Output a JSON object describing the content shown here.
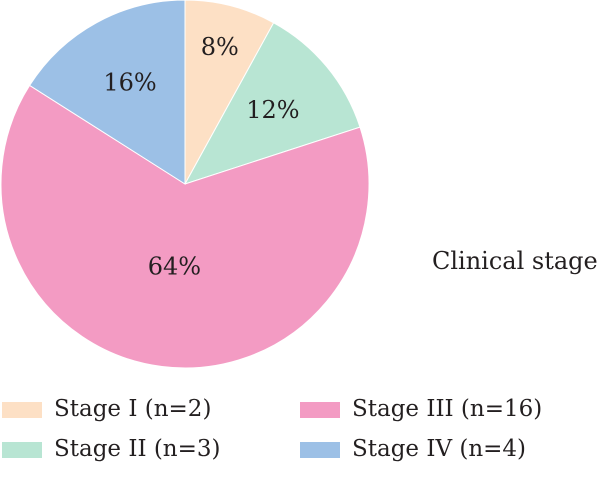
{
  "chart_data": {
    "type": "pie",
    "title": "Clinical stage",
    "series": [
      {
        "name": "Stage I (n=2)",
        "value": 8,
        "label": "8%",
        "color": "#fde0c5"
      },
      {
        "name": "Stage II (n=3)",
        "value": 12,
        "label": "12%",
        "color": "#b8e5d3"
      },
      {
        "name": "Stage III (n=16)",
        "value": 64,
        "label": "64%",
        "color": "#f39bc3"
      },
      {
        "name": "Stage IV (n=4)",
        "value": 16,
        "label": "16%",
        "color": "#9cc0e6"
      }
    ],
    "start_angle": "12 o'clock",
    "direction": "clockwise",
    "legend_position": "bottom"
  }
}
